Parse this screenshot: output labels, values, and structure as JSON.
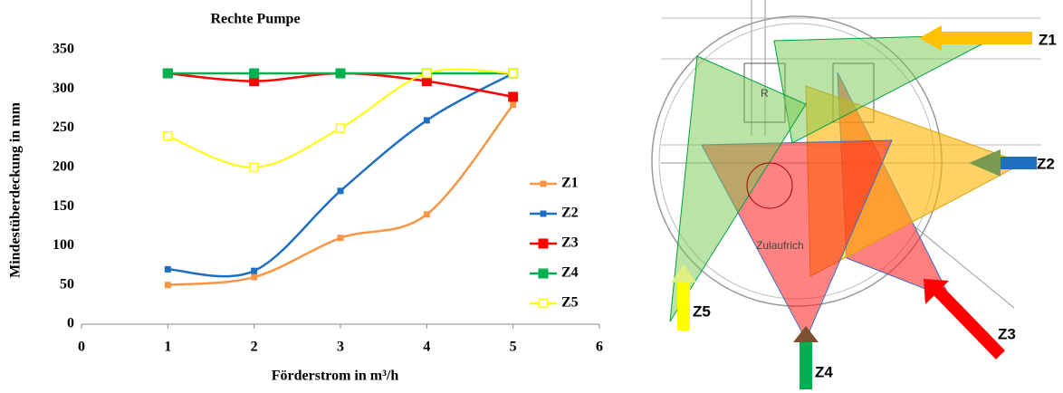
{
  "chart_data": {
    "type": "line",
    "title": "Rechte Pumpe",
    "x_label": "Förderstrom in m³/h",
    "y_label": "Mindestüberdeckung in mm",
    "x": [
      1,
      2,
      3,
      4,
      5
    ],
    "series": [
      {
        "name": "Z1",
        "color": "#f79646",
        "values": [
          50,
          60,
          110,
          140,
          280
        ]
      },
      {
        "name": "Z2",
        "color": "#1f6fc1",
        "values": [
          70,
          68,
          170,
          260,
          320
        ]
      },
      {
        "name": "Z3",
        "color": "#ff0000",
        "values": [
          320,
          310,
          320,
          310,
          290
        ]
      },
      {
        "name": "Z4",
        "color": "#00b050",
        "values": [
          320,
          320,
          320,
          320,
          320
        ]
      },
      {
        "name": "Z5",
        "color": "#ffff00",
        "values": [
          240,
          200,
          250,
          320,
          320
        ]
      }
    ],
    "xlim": [
      0,
      6
    ],
    "xticks": [
      0,
      1,
      2,
      3,
      4,
      5,
      6
    ],
    "ylim": [
      0,
      350
    ],
    "yticks": [
      0,
      50,
      100,
      150,
      200,
      250,
      300,
      350
    ],
    "legend": "right"
  },
  "diagram": {
    "labels": [
      "Z1",
      "Z2",
      "Z3",
      "Z4",
      "Z5",
      "R",
      "Zulaufrich"
    ]
  }
}
